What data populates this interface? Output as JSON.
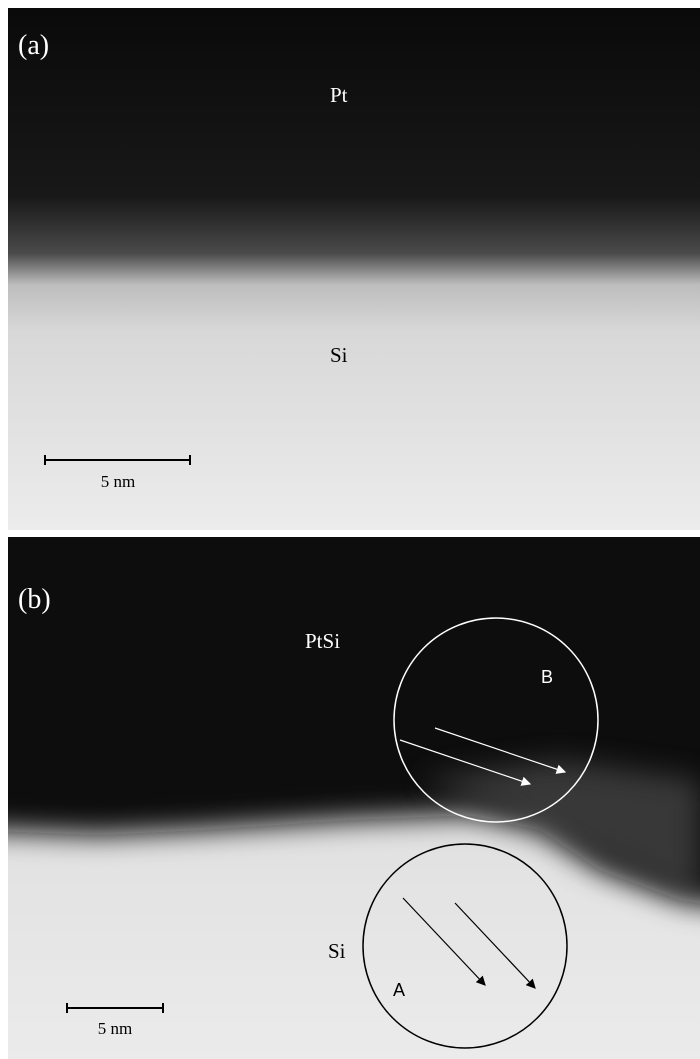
{
  "panels": [
    {
      "label": "(a)",
      "top_material": "Pt",
      "bottom_material": "Si",
      "scale_bar": "5 nm"
    },
    {
      "label": "(b)",
      "top_material": "PtSi",
      "bottom_material": "Si",
      "scale_bar": "5 nm",
      "regions": [
        "B",
        "A"
      ]
    }
  ]
}
